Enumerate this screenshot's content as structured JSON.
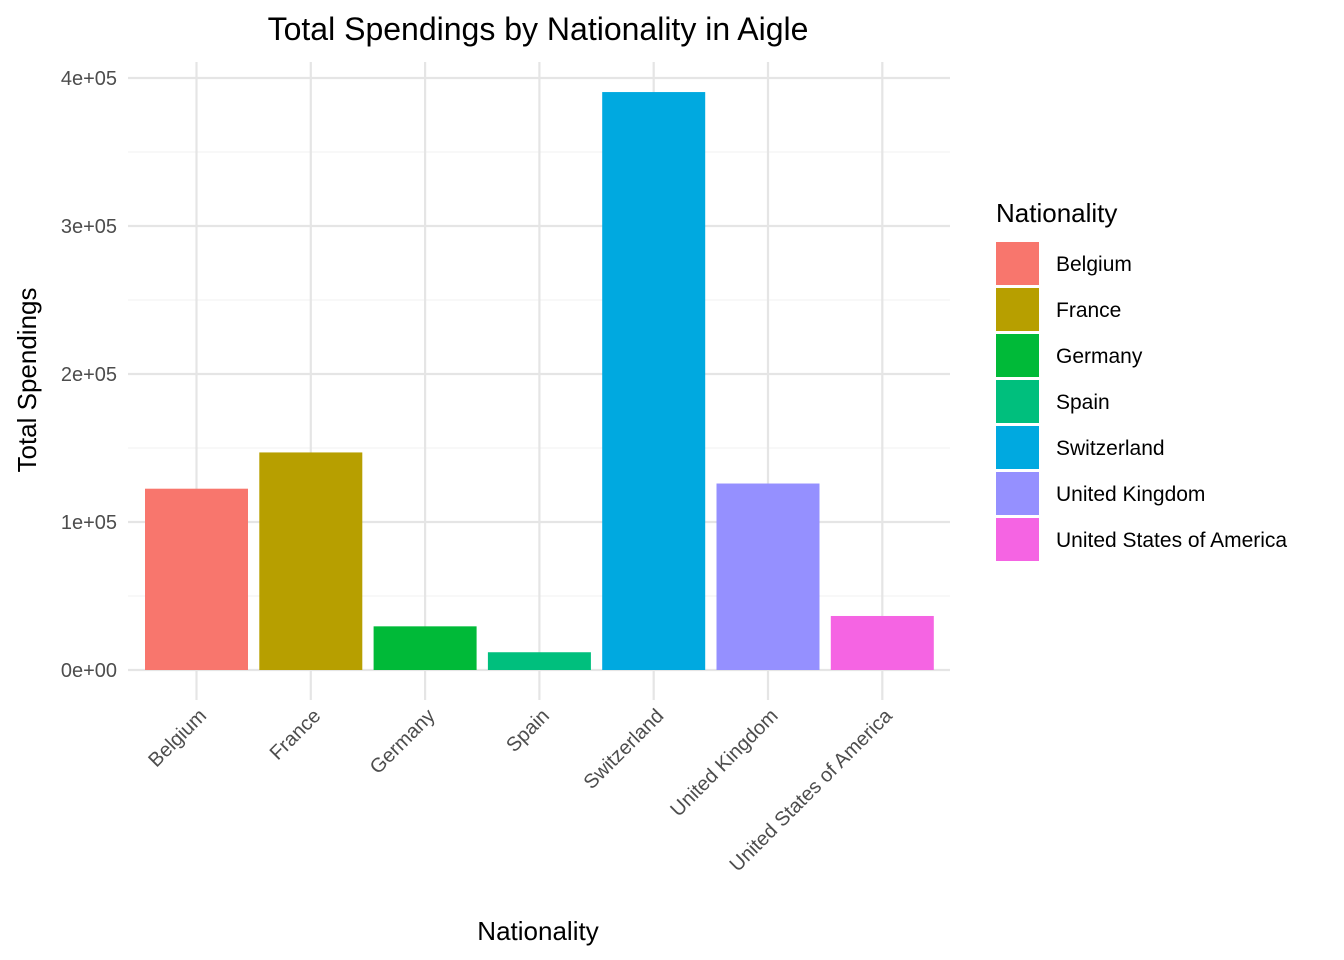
{
  "chart_data": {
    "type": "bar",
    "title": "Total Spendings by Nationality in Aigle",
    "xlabel": "Nationality",
    "ylabel": "Total Spendings",
    "categories": [
      "Belgium",
      "France",
      "Germany",
      "Spain",
      "Switzerland",
      "United Kingdom",
      "United States of America"
    ],
    "values": [
      122500,
      147000,
      29500,
      12000,
      390500,
      126000,
      36500
    ],
    "colors": [
      "#F8766D",
      "#B79F00",
      "#00BA38",
      "#00BF7D",
      "#00A9E0",
      "#9590FF",
      "#F564E3"
    ],
    "ylim": [
      0,
      400000
    ],
    "yticks": [
      0,
      100000,
      200000,
      300000,
      400000
    ],
    "ytick_labels": [
      "0e+00",
      "1e+05",
      "2e+05",
      "3e+05",
      "4e+05"
    ],
    "grid": true,
    "legend": {
      "title": "Nationality",
      "position": "right",
      "entries": [
        "Belgium",
        "France",
        "Germany",
        "Spain",
        "Switzerland",
        "United Kingdom",
        "United States of America"
      ]
    }
  }
}
